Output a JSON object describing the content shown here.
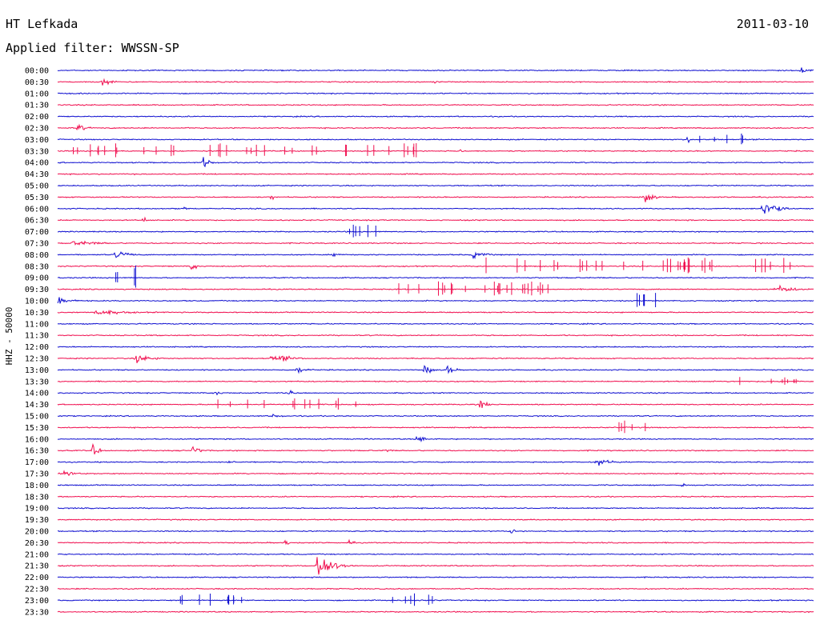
{
  "header": {
    "station": "HT Lefkada",
    "date": "2011-03-10",
    "filter": "Applied filter: WWSSN-SP"
  },
  "chart_data": {
    "type": "line",
    "title": "HT Lefkada",
    "subtitle": "Applied filter: WWSSN-SP",
    "ylabel": "HHZ - 50000",
    "rows": [
      "00:00",
      "00:30",
      "01:00",
      "01:30",
      "02:00",
      "02:30",
      "03:00",
      "03:30",
      "04:00",
      "04:30",
      "05:00",
      "05:30",
      "06:00",
      "06:30",
      "07:00",
      "07:30",
      "08:00",
      "08:30",
      "09:00",
      "09:30",
      "10:00",
      "10:30",
      "11:00",
      "11:30",
      "12:00",
      "12:30",
      "13:00",
      "13:30",
      "14:00",
      "14:30",
      "15:00",
      "15:30",
      "16:00",
      "16:30",
      "17:00",
      "17:30",
      "18:00",
      "18:30",
      "19:00",
      "19:30",
      "20:00",
      "20:30",
      "21:00",
      "21:30",
      "22:00",
      "22:30",
      "23:00",
      "23:30"
    ],
    "series_colors": [
      "#1010d0",
      "#f01050"
    ],
    "row_minutes": 30,
    "grid": false,
    "events": [
      {
        "row": "00:00",
        "minute": 29.5,
        "amp": 7,
        "dur": 0.8
      },
      {
        "row": "00:30",
        "minute": 1.8,
        "amp": 8,
        "dur": 1.0
      },
      {
        "row": "00:30",
        "minute": 15.0,
        "amp": 4,
        "dur": 0.2
      },
      {
        "row": "02:30",
        "minute": 0.8,
        "amp": 7,
        "dur": 0.9
      },
      {
        "row": "03:00",
        "minute": 25.0,
        "amp": 10,
        "dur": 0.3
      },
      {
        "row": "03:30",
        "minute": 16.0,
        "amp": 8,
        "dur": 0.2
      },
      {
        "row": "04:00",
        "minute": 5.8,
        "amp": 11,
        "dur": 0.8
      },
      {
        "row": "05:30",
        "minute": 8.5,
        "amp": 6,
        "dur": 0.4
      },
      {
        "row": "05:30",
        "minute": 23.3,
        "amp": 11,
        "dur": 0.9
      },
      {
        "row": "06:00",
        "minute": 5.0,
        "amp": 6,
        "dur": 0.3
      },
      {
        "row": "06:00",
        "minute": 28.0,
        "amp": 20,
        "dur": 1.3
      },
      {
        "row": "06:30",
        "minute": 3.4,
        "amp": 8,
        "dur": 0.3
      },
      {
        "row": "07:30",
        "minute": 0.6,
        "amp": 5,
        "dur": 3.2
      },
      {
        "row": "08:00",
        "minute": 2.3,
        "amp": 7,
        "dur": 1.7
      },
      {
        "row": "08:00",
        "minute": 11.0,
        "amp": 12,
        "dur": 0.3
      },
      {
        "row": "08:00",
        "minute": 16.5,
        "amp": 7,
        "dur": 1.4
      },
      {
        "row": "08:30",
        "minute": 5.3,
        "amp": 8,
        "dur": 0.6
      },
      {
        "row": "09:30",
        "minute": 28.5,
        "amp": 7,
        "dur": 2.2
      },
      {
        "row": "10:00",
        "minute": 0.0,
        "amp": 8,
        "dur": 1.3
      },
      {
        "row": "10:30",
        "minute": 1.5,
        "amp": 5,
        "dur": 3.5
      },
      {
        "row": "12:30",
        "minute": 3.1,
        "amp": 9,
        "dur": 1.6
      },
      {
        "row": "12:30",
        "minute": 8.5,
        "amp": 6,
        "dur": 0.5
      },
      {
        "row": "12:30",
        "minute": 8.8,
        "amp": 6,
        "dur": 1.8
      },
      {
        "row": "13:00",
        "minute": 9.5,
        "amp": 6,
        "dur": 1.2
      },
      {
        "row": "13:00",
        "minute": 14.6,
        "amp": 15,
        "dur": 0.5
      },
      {
        "row": "13:00",
        "minute": 15.5,
        "amp": 14,
        "dur": 0.5
      },
      {
        "row": "14:00",
        "minute": 6.3,
        "amp": 8,
        "dur": 0.4
      },
      {
        "row": "14:00",
        "minute": 9.2,
        "amp": 9,
        "dur": 0.5
      },
      {
        "row": "14:30",
        "minute": 16.8,
        "amp": 9,
        "dur": 0.8
      },
      {
        "row": "15:00",
        "minute": 8.5,
        "amp": 5,
        "dur": 1.0
      },
      {
        "row": "16:00",
        "minute": 14.3,
        "amp": 12,
        "dur": 0.6
      },
      {
        "row": "16:30",
        "minute": 1.4,
        "amp": 12,
        "dur": 0.6
      },
      {
        "row": "16:30",
        "minute": 5.4,
        "amp": 14,
        "dur": 0.5
      },
      {
        "row": "16:30",
        "minute": 13.0,
        "amp": 5,
        "dur": 0.6
      },
      {
        "row": "17:00",
        "minute": 6.8,
        "amp": 5,
        "dur": 0.5
      },
      {
        "row": "17:00",
        "minute": 21.4,
        "amp": 8,
        "dur": 1.5
      },
      {
        "row": "17:30",
        "minute": 0.3,
        "amp": 10,
        "dur": 0.8
      },
      {
        "row": "18:00",
        "minute": 24.8,
        "amp": 10,
        "dur": 0.2
      },
      {
        "row": "20:00",
        "minute": 18.0,
        "amp": 7,
        "dur": 0.5
      },
      {
        "row": "20:30",
        "minute": 9.0,
        "amp": 7,
        "dur": 0.5
      },
      {
        "row": "20:30",
        "minute": 11.6,
        "amp": 6,
        "dur": 0.4
      },
      {
        "row": "21:30",
        "minute": 10.3,
        "amp": 30,
        "dur": 1.4
      }
    ],
    "spike_clusters": [
      {
        "row": "03:30",
        "from": 0.6,
        "to": 14.3,
        "count": 34,
        "amp": 10
      },
      {
        "row": "03:00",
        "from": 24.8,
        "to": 27.5,
        "count": 6,
        "amp": 8
      },
      {
        "row": "07:00",
        "from": 11.5,
        "to": 12.7,
        "count": 6,
        "amp": 9
      },
      {
        "row": "08:30",
        "from": 16.2,
        "to": 30.0,
        "count": 34,
        "amp": 11
      },
      {
        "row": "09:00",
        "from": 2.3,
        "to": 3.4,
        "count": 4,
        "amp": 16
      },
      {
        "row": "09:30",
        "from": 13.5,
        "to": 19.8,
        "count": 24,
        "amp": 10
      },
      {
        "row": "10:00",
        "from": 22.7,
        "to": 23.8,
        "count": 5,
        "amp": 12
      },
      {
        "row": "13:30",
        "from": 27.0,
        "to": 29.5,
        "count": 8,
        "amp": 6
      },
      {
        "row": "14:30",
        "from": 6.3,
        "to": 12.6,
        "count": 12,
        "amp": 8
      },
      {
        "row": "15:30",
        "from": 22.0,
        "to": 23.4,
        "count": 5,
        "amp": 10
      },
      {
        "row": "23:00",
        "from": 4.4,
        "to": 7.3,
        "count": 10,
        "amp": 10
      },
      {
        "row": "23:00",
        "from": 13.2,
        "to": 14.9,
        "count": 6,
        "amp": 10
      }
    ]
  }
}
